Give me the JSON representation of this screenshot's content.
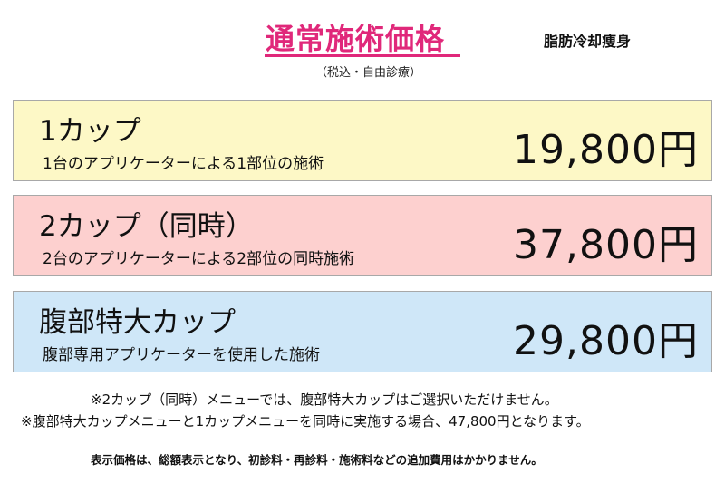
{
  "header": {
    "title": "通常施術価格",
    "subtitle": "（税込・自由診療）",
    "category": "脂肪冷却痩身",
    "accent_color": "#e0287a"
  },
  "plans": [
    {
      "name": "1カップ",
      "description": "1台のアプリケーターによる1部位の施術",
      "price": "19,800円",
      "background": "#fdf8c6"
    },
    {
      "name": "2カップ（同時）",
      "description": "2台のアプリケーターによる2部位の同時施術",
      "price": "37,800円",
      "background": "#fdd0cf"
    },
    {
      "name": "腹部特大カップ",
      "description": "腹部専用アプリケーターを使用した施術",
      "price": "29,800円",
      "background": "#cfe7f8"
    }
  ],
  "notes": [
    "※2カップ（同時）メニューでは、腹部特大カップはご選択いただけません。",
    "※腹部特大カップメニューと1カップメニューを同時に実施する場合、47,800円となります。"
  ],
  "disclaimer": "表示価格は、総額表示となり、初診料・再診料・施術料などの追加費用はかかりません。"
}
